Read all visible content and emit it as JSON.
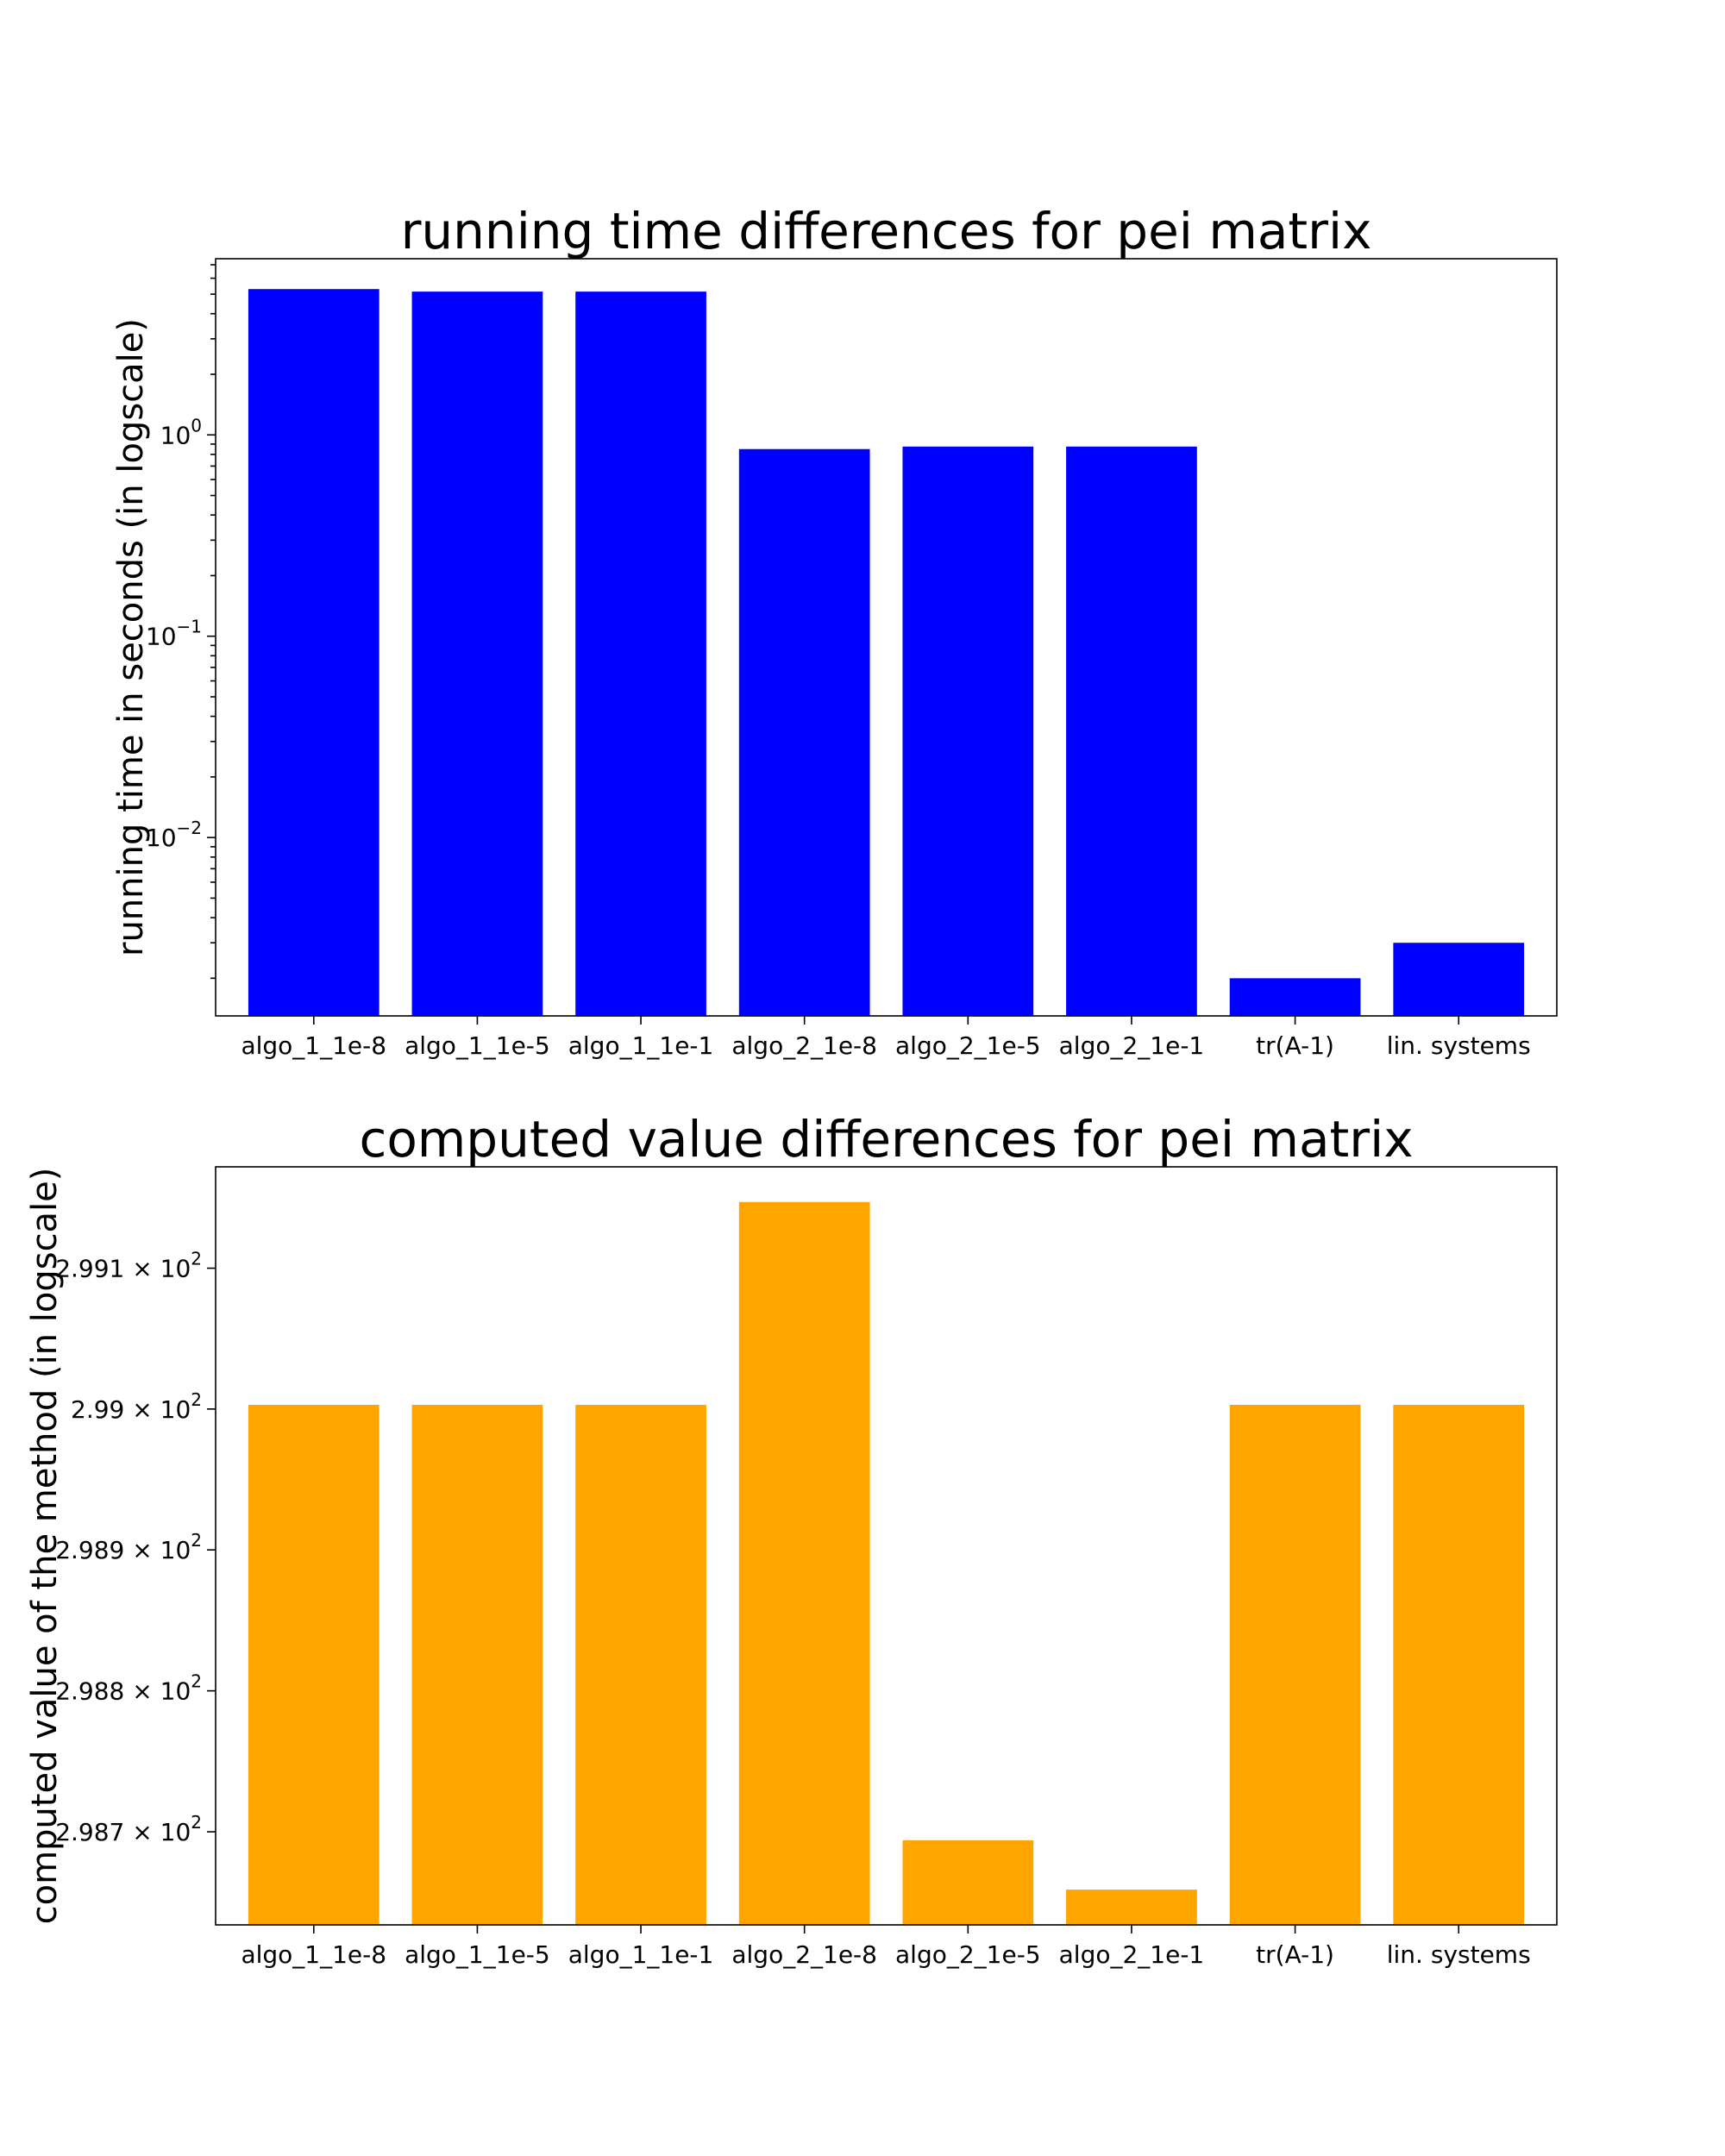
{
  "chart_data": [
    {
      "type": "bar",
      "title": "running time differences for pei matrix",
      "xlabel": "",
      "ylabel": "running time in seconds (in logscale)",
      "yscale": "log",
      "ylim": [
        0.0013,
        7.5
      ],
      "ytick_labels": [
        {
          "base": "10",
          "exp": "0",
          "value": 1
        },
        {
          "base": "10",
          "exp": "−1",
          "value": 0.1
        },
        {
          "base": "10",
          "exp": "−2",
          "value": 0.01
        }
      ],
      "categories": [
        "algo_1_1e-8",
        "algo_1_1e-5",
        "algo_1_1e-1",
        "algo_2_1e-8",
        "algo_2_1e-5",
        "algo_2_1e-1",
        "tr(A-1)",
        "lin. systems"
      ],
      "values": [
        5.3,
        5.15,
        5.15,
        0.85,
        0.875,
        0.875,
        0.002,
        0.003
      ],
      "color": "#0000ff",
      "grid": false,
      "legend": "none"
    },
    {
      "type": "bar",
      "title": "computed value differences for pei matrix",
      "xlabel": "",
      "ylabel": "computed value of the method (in logscale)",
      "yscale": "log",
      "ylim": [
        298.634,
        299.172
      ],
      "ytick_labels": [
        {
          "base": "2.991 × 10",
          "exp": "2",
          "value": 299.1
        },
        {
          "base": "2.99 × 10",
          "exp": "2",
          "value": 299.0
        },
        {
          "base": "2.989 × 10",
          "exp": "2",
          "value": 298.9
        },
        {
          "base": "2.988 × 10",
          "exp": "2",
          "value": 298.8
        },
        {
          "base": "2.987 × 10",
          "exp": "2",
          "value": 298.7
        }
      ],
      "categories": [
        "algo_1_1e-8",
        "algo_1_1e-5",
        "algo_1_1e-1",
        "algo_2_1e-8",
        "algo_2_1e-5",
        "algo_2_1e-1",
        "tr(A-1)",
        "lin. systems"
      ],
      "values": [
        299.003,
        299.003,
        299.003,
        299.147,
        298.694,
        298.659,
        299.003,
        299.003
      ],
      "color": "#ffa500",
      "grid": false,
      "legend": "none"
    }
  ]
}
